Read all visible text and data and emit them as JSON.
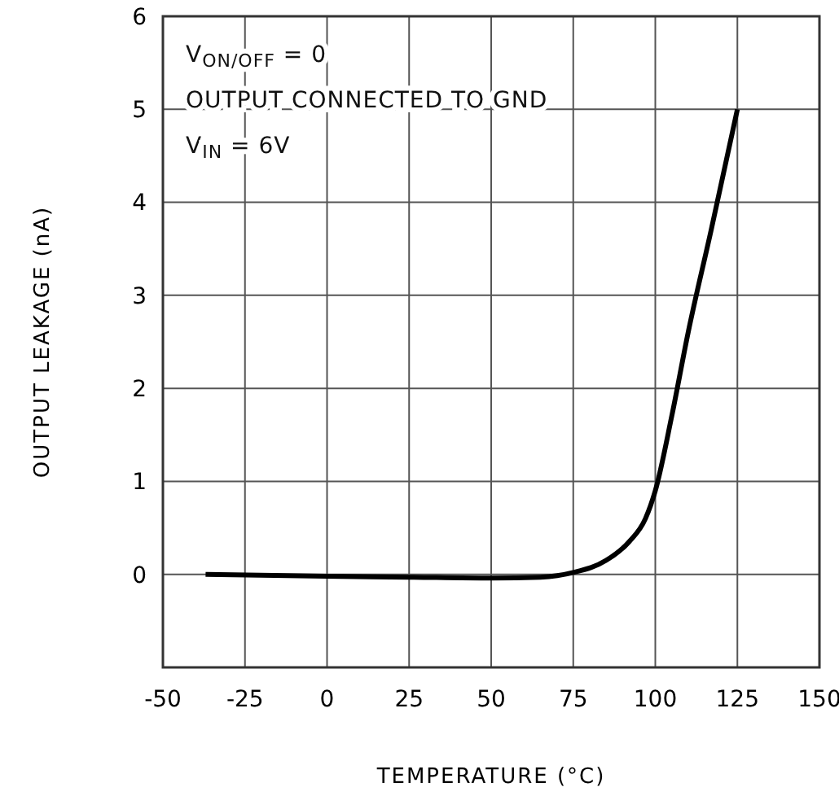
{
  "chart_data": {
    "type": "line",
    "xlabel": "TEMPERATURE (°C)",
    "ylabel": "OUTPUT LEAKAGE (nA)",
    "annotations": [
      "V$_{ON/OFF}$ = 0",
      "OUTPUT CONNECTED TO GND",
      "V$_{IN}$ = 6V"
    ],
    "x": [
      -37,
      0,
      25,
      50,
      65,
      75,
      85,
      92,
      97,
      100,
      105,
      110,
      117,
      125
    ],
    "series": [
      {
        "color": "#000000",
        "values": [
          0,
          -0.02,
          -0.03,
          -0.04,
          -0.03,
          0.02,
          0.15,
          0.35,
          0.6,
          0.9,
          1.7,
          2.6,
          3.7,
          5.0
        ]
      }
    ],
    "xlim": [
      -50,
      150
    ],
    "xticks": [
      -50,
      -25,
      0,
      25,
      50,
      75,
      100,
      125,
      150
    ],
    "ylim": [
      -1,
      6
    ],
    "yticks": [
      {
        "value": -1,
        "label": null
      },
      0,
      1,
      2,
      3,
      4,
      5,
      6
    ],
    "grid": true,
    "marker": "none",
    "line_style": "solid"
  }
}
